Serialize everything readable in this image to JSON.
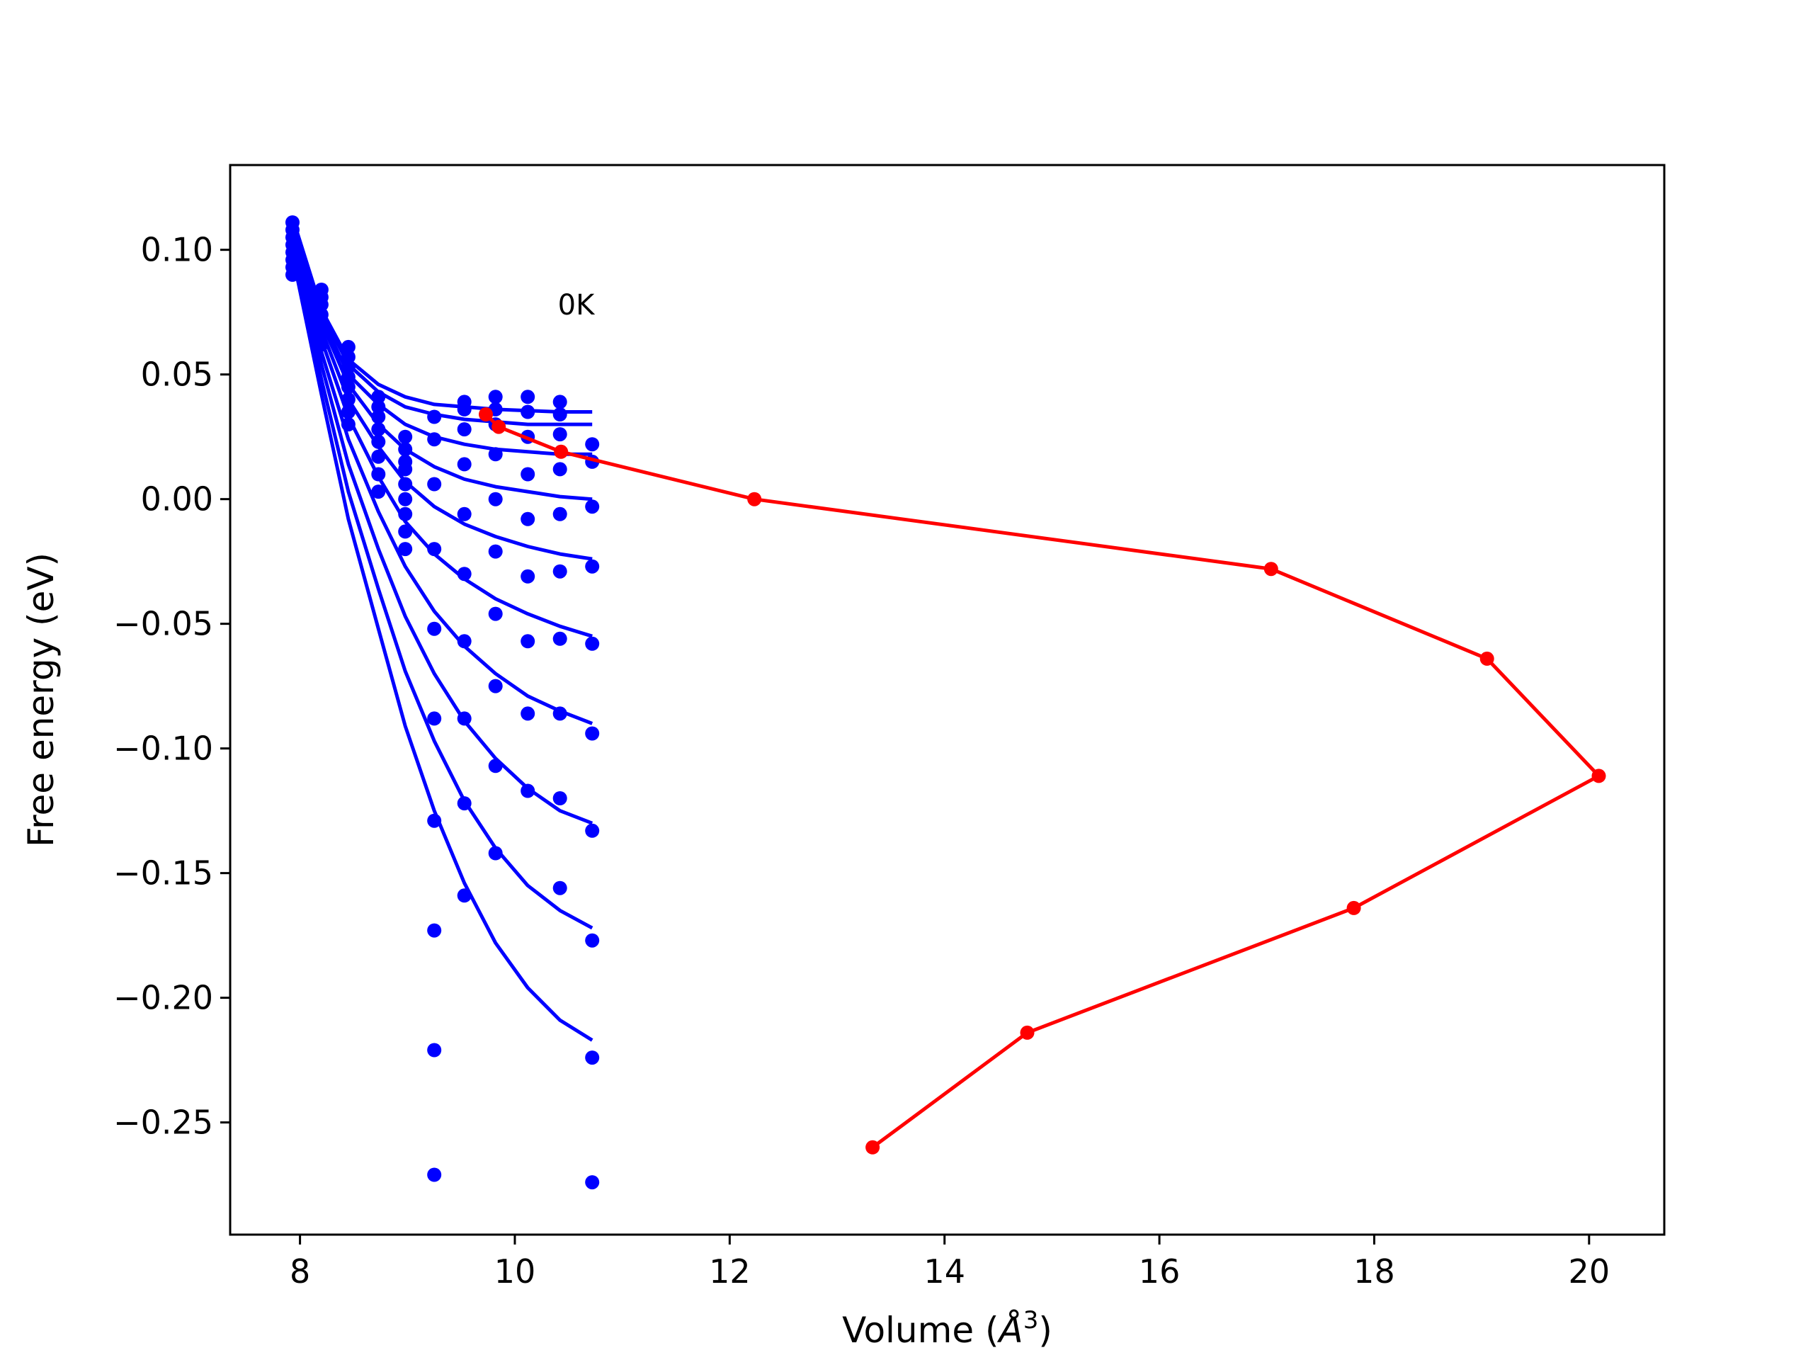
{
  "chart_data": {
    "type": "scatter",
    "xlabel_base": "Volume (",
    "xlabel_symbol": "Å",
    "xlabel_exp": "3",
    "xlabel_close": ")",
    "ylabel": "Free energy (eV)",
    "xlim": [
      7.35,
      20.7
    ],
    "ylim": [
      -0.295,
      0.134
    ],
    "xticks": [
      8,
      10,
      12,
      14,
      16,
      18,
      20
    ],
    "yticks": [
      0.1,
      0.05,
      0.0,
      -0.05,
      -0.1,
      -0.15,
      -0.2,
      -0.25
    ],
    "ytick_labels": [
      "0.10",
      "0.05",
      "0.00",
      "−0.05",
      "−0.10",
      "−0.15",
      "−0.20",
      "−0.25"
    ],
    "annotation": "0K",
    "annotation_pos": [
      10.4,
      0.074
    ],
    "colors": {
      "fits": "#0000ff",
      "path": "#ff0000"
    },
    "volumes": [
      7.93,
      8.2,
      8.45,
      8.73,
      8.98,
      9.25,
      9.53,
      9.82,
      10.12,
      10.42,
      10.72
    ],
    "fit_series": [
      {
        "values": [
          0.113,
          0.076,
          0.056,
          0.046,
          0.041,
          0.038,
          0.037,
          0.036,
          0.0355,
          0.035,
          0.035
        ]
      },
      {
        "values": [
          0.112,
          0.075,
          0.054,
          0.043,
          0.037,
          0.034,
          0.032,
          0.031,
          0.03,
          0.03,
          0.03
        ]
      },
      {
        "values": [
          0.111,
          0.073,
          0.05,
          0.038,
          0.03,
          0.025,
          0.022,
          0.02,
          0.019,
          0.018,
          0.018
        ]
      },
      {
        "values": [
          0.109,
          0.071,
          0.046,
          0.03,
          0.02,
          0.013,
          0.008,
          0.005,
          0.003,
          0.001,
          0.0
        ]
      },
      {
        "values": [
          0.108,
          0.068,
          0.04,
          0.021,
          0.007,
          -0.003,
          -0.01,
          -0.015,
          -0.019,
          -0.022,
          -0.024
        ]
      },
      {
        "values": [
          0.106,
          0.064,
          0.033,
          0.009,
          -0.009,
          -0.022,
          -0.032,
          -0.04,
          -0.046,
          -0.051,
          -0.055
        ]
      },
      {
        "values": [
          0.104,
          0.059,
          0.024,
          -0.005,
          -0.027,
          -0.045,
          -0.059,
          -0.07,
          -0.079,
          -0.085,
          -0.09
        ]
      },
      {
        "values": [
          0.102,
          0.054,
          0.014,
          -0.02,
          -0.047,
          -0.07,
          -0.089,
          -0.104,
          -0.116,
          -0.125,
          -0.13
        ]
      },
      {
        "values": [
          0.1,
          0.048,
          0.003,
          -0.036,
          -0.069,
          -0.097,
          -0.121,
          -0.14,
          -0.155,
          -0.165,
          -0.172
        ]
      },
      {
        "values": [
          0.098,
          0.042,
          -0.008,
          -0.052,
          -0.091,
          -0.125,
          -0.154,
          -0.178,
          -0.196,
          -0.209,
          -0.217
        ]
      }
    ],
    "scatter_points": [
      [
        7.93,
        0.111
      ],
      [
        7.93,
        0.108
      ],
      [
        7.93,
        0.105
      ],
      [
        7.93,
        0.102
      ],
      [
        7.93,
        0.099
      ],
      [
        7.93,
        0.096
      ],
      [
        7.93,
        0.093
      ],
      [
        7.93,
        0.09
      ],
      [
        8.2,
        0.084
      ],
      [
        8.2,
        0.081
      ],
      [
        8.2,
        0.078
      ],
      [
        8.2,
        0.074
      ],
      [
        8.2,
        0.07
      ],
      [
        8.2,
        0.066
      ],
      [
        8.2,
        0.062
      ],
      [
        8.45,
        0.061
      ],
      [
        8.45,
        0.057
      ],
      [
        8.45,
        0.053
      ],
      [
        8.45,
        0.049
      ],
      [
        8.45,
        0.045
      ],
      [
        8.45,
        0.04
      ],
      [
        8.45,
        0.035
      ],
      [
        8.45,
        0.03
      ],
      [
        8.73,
        0.041
      ],
      [
        8.73,
        0.037
      ],
      [
        8.73,
        0.033
      ],
      [
        8.73,
        0.028
      ],
      [
        8.73,
        0.023
      ],
      [
        8.73,
        0.017
      ],
      [
        8.73,
        0.01
      ],
      [
        8.73,
        0.003
      ],
      [
        8.98,
        0.025
      ],
      [
        8.98,
        0.02
      ],
      [
        8.98,
        0.015
      ],
      [
        8.98,
        0.012
      ],
      [
        8.98,
        0.006
      ],
      [
        8.98,
        0.0
      ],
      [
        8.98,
        -0.006
      ],
      [
        8.98,
        -0.013
      ],
      [
        8.98,
        -0.02
      ],
      [
        9.25,
        0.033
      ],
      [
        9.25,
        0.024
      ],
      [
        9.25,
        0.006
      ],
      [
        9.25,
        -0.02
      ],
      [
        9.25,
        -0.052
      ],
      [
        9.25,
        -0.088
      ],
      [
        9.25,
        -0.129
      ],
      [
        9.25,
        -0.173
      ],
      [
        9.25,
        -0.221
      ],
      [
        9.25,
        -0.271
      ],
      [
        9.53,
        0.039
      ],
      [
        9.53,
        0.036
      ],
      [
        9.53,
        0.028
      ],
      [
        9.53,
        0.014
      ],
      [
        9.53,
        -0.006
      ],
      [
        9.53,
        -0.03
      ],
      [
        9.53,
        -0.057
      ],
      [
        9.53,
        -0.088
      ],
      [
        9.53,
        -0.122
      ],
      [
        9.53,
        -0.159
      ],
      [
        9.82,
        0.041
      ],
      [
        9.82,
        0.036
      ],
      [
        9.82,
        0.03
      ],
      [
        9.82,
        0.018
      ],
      [
        9.82,
        0.0
      ],
      [
        9.82,
        -0.021
      ],
      [
        9.82,
        -0.046
      ],
      [
        9.82,
        -0.075
      ],
      [
        9.82,
        -0.107
      ],
      [
        9.82,
        -0.142
      ],
      [
        10.12,
        0.041
      ],
      [
        10.12,
        0.035
      ],
      [
        10.12,
        0.025
      ],
      [
        10.12,
        0.01
      ],
      [
        10.12,
        -0.008
      ],
      [
        10.12,
        -0.031
      ],
      [
        10.12,
        -0.057
      ],
      [
        10.12,
        -0.086
      ],
      [
        10.12,
        -0.117
      ],
      [
        10.42,
        0.039
      ],
      [
        10.42,
        0.034
      ],
      [
        10.42,
        0.026
      ],
      [
        10.42,
        0.012
      ],
      [
        10.42,
        -0.006
      ],
      [
        10.42,
        -0.029
      ],
      [
        10.42,
        -0.056
      ],
      [
        10.42,
        -0.086
      ],
      [
        10.42,
        -0.12
      ],
      [
        10.42,
        -0.156
      ],
      [
        10.72,
        0.022
      ],
      [
        10.72,
        0.015
      ],
      [
        10.72,
        -0.003
      ],
      [
        10.72,
        -0.027
      ],
      [
        10.72,
        -0.058
      ],
      [
        10.72,
        -0.094
      ],
      [
        10.72,
        -0.133
      ],
      [
        10.72,
        -0.177
      ],
      [
        10.72,
        -0.224
      ],
      [
        10.72,
        -0.274
      ]
    ],
    "path_points": [
      [
        9.73,
        0.034
      ],
      [
        9.85,
        0.029
      ],
      [
        10.43,
        0.019
      ],
      [
        12.23,
        0.0
      ],
      [
        17.04,
        -0.028
      ],
      [
        19.05,
        -0.064
      ],
      [
        20.09,
        -0.111
      ],
      [
        17.81,
        -0.164
      ],
      [
        14.77,
        -0.214
      ],
      [
        13.33,
        -0.26
      ]
    ]
  }
}
